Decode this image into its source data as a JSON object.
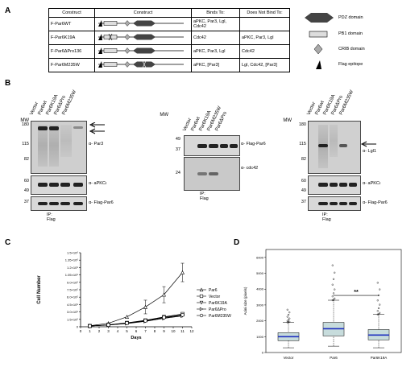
{
  "panels": {
    "A": "A",
    "B": "B",
    "C": "C",
    "D": "D"
  },
  "table": {
    "headers": [
      "Construct",
      "Construct",
      "Binds To:",
      "Does Not Bind To:"
    ],
    "rows": [
      {
        "name": "F-Par6WT",
        "binds": "aPKC, Par3, Lgl, Cdc42",
        "not_binds": ""
      },
      {
        "name": "F-Par6K19A",
        "binds": "Cdc42",
        "not_binds": "aPKC, Par3, Lgl"
      },
      {
        "name": "F-Par6ΔPro136",
        "binds": "aPKC, Par3, Lgl",
        "not_binds": "Cdc42"
      },
      {
        "name": "F-Par6M235W",
        "binds": "aPKC, [Par3]",
        "not_binds": "Lgl, Cdc42, [Par3]"
      }
    ]
  },
  "legend": {
    "pdz": "PDZ domain",
    "pb1": "PB1 domain",
    "crib": "CRIB domain",
    "flag": "Flag epitope"
  },
  "blots": {
    "left": {
      "mw_title": "MW",
      "lanes": [
        "Vector",
        "Par6wt",
        "Par6K19A",
        "Par6ΔPro",
        "Par6M235W"
      ],
      "mw_top": [
        "180",
        "115",
        "82"
      ],
      "mw_mid": [
        "60",
        "49"
      ],
      "mw_bot": [
        "37"
      ],
      "labels": [
        "α- Par3",
        "α- aPKCι",
        "α- Flag-Par6"
      ],
      "ip": "IP: Flag"
    },
    "middle": {
      "mw_title": "MW",
      "lanes": [
        "Vector",
        "Par6wt",
        "Par6K19A",
        "Par6M235W",
        "Par6ΔPro"
      ],
      "mw_top": [
        "49",
        "37"
      ],
      "mw_bot": [
        "24"
      ],
      "labels": [
        "α- Flag-Par6",
        "α- cdc42"
      ],
      "ip": "IP: Flag"
    },
    "right": {
      "mw_title": "MW",
      "lanes": [
        "Vector",
        "Par6wt",
        "Par6K19A",
        "Par6ΔPro",
        "Par6M235W"
      ],
      "mw_top": [
        "180",
        "115",
        "82"
      ],
      "mw_mid": [
        "60",
        "49"
      ],
      "mw_bot": [
        "37"
      ],
      "labels": [
        "α- Lgl1",
        "α- aPKCι",
        "α- Flag-Par6"
      ],
      "ip": "IP: Flag"
    }
  },
  "chart_data": [
    {
      "type": "line",
      "xlabel": "Days",
      "ylabel": "Cell Number",
      "x": [
        0,
        1,
        2,
        3,
        4,
        5,
        6,
        7,
        8,
        9,
        10,
        11
      ],
      "xlim": [
        0,
        12
      ],
      "ylim": [
        0,
        1500000
      ],
      "yticks": [
        "0",
        "1.5×10⁵",
        "3.0×10⁵",
        "4.5×10⁵",
        "6.0×10⁵",
        "7.5×10⁵",
        "9.0×10⁵",
        "1.05×10⁶",
        "1.2×10⁶",
        "1.35×10⁶",
        "1.5×10⁶"
      ],
      "xticks": [
        "0",
        "1",
        "2",
        "3",
        "4",
        "5",
        "6",
        "7",
        "8",
        "9",
        "10",
        "11",
        "12"
      ],
      "series": [
        {
          "name": "Par6",
          "marker": "triangle-up",
          "x": [
            1,
            3,
            5,
            7,
            9,
            11
          ],
          "values": [
            20000,
            70000,
            200000,
            400000,
            650000,
            1100000
          ]
        },
        {
          "name": "Vector",
          "marker": "square",
          "x": [
            1,
            3,
            5,
            7,
            9,
            11
          ],
          "values": [
            15000,
            40000,
            80000,
            130000,
            200000,
            260000
          ]
        },
        {
          "name": "Par6K19A",
          "marker": "triangle-down",
          "x": [
            1,
            3,
            5,
            7,
            9,
            11
          ],
          "values": [
            15000,
            35000,
            70000,
            120000,
            180000,
            230000
          ]
        },
        {
          "name": "Par6ΔPro",
          "marker": "triangle-right",
          "x": [
            1,
            3,
            5,
            7,
            9,
            11
          ],
          "values": [
            15000,
            35000,
            65000,
            110000,
            170000,
            220000
          ]
        },
        {
          "name": "Par6M235W",
          "marker": "circle",
          "x": [
            1,
            3,
            5,
            7,
            9,
            11
          ],
          "values": [
            15000,
            38000,
            75000,
            125000,
            190000,
            240000
          ]
        }
      ]
    },
    {
      "type": "box",
      "ylabel": "Acini size (pixels)",
      "categories": [
        "Vector",
        "Par6",
        "Par6K19A"
      ],
      "yticks": [
        "0",
        "1000",
        "2000",
        "3000",
        "4000",
        "5000",
        "6000"
      ],
      "ylim": [
        0,
        6500
      ],
      "boxes": [
        {
          "min": 300,
          "q1": 750,
          "median": 1000,
          "q3": 1250,
          "max": 1900,
          "fliers_top": 2700
        },
        {
          "min": 400,
          "q1": 1050,
          "median": 1500,
          "q3": 1900,
          "max": 3300,
          "fliers_top": 5500
        },
        {
          "min": 300,
          "q1": 800,
          "median": 1100,
          "q3": 1450,
          "max": 2400,
          "fliers_top": 4400
        }
      ],
      "annotation": "**"
    }
  ]
}
